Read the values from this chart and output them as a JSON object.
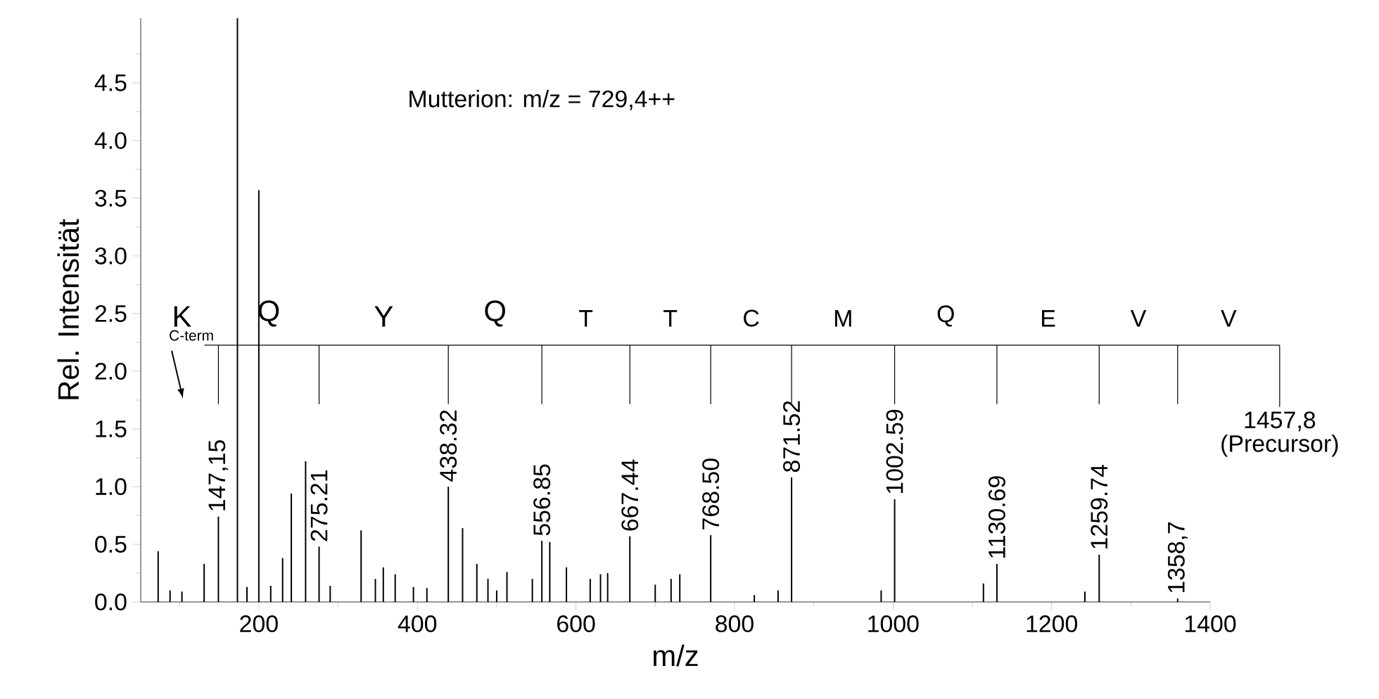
{
  "chart_data": {
    "type": "bar",
    "xlabel": "m/z",
    "ylabel": "Rel. Intensität",
    "x": [
      73,
      88,
      103,
      131,
      149,
      173,
      185,
      200,
      215,
      230,
      241,
      259,
      276,
      290,
      329,
      347,
      357,
      372,
      395,
      412,
      439,
      457,
      475,
      489,
      500,
      513,
      545,
      557,
      567,
      588,
      618,
      631,
      640,
      668,
      700,
      720,
      731,
      770,
      825,
      855,
      872,
      985,
      1002,
      1114,
      1131,
      1242,
      1260,
      1359
    ],
    "values": [
      0.44,
      0.1,
      0.09,
      0.33,
      0.74,
      5.06,
      0.13,
      3.57,
      0.14,
      0.38,
      0.94,
      1.22,
      0.48,
      0.14,
      0.62,
      0.2,
      0.3,
      0.24,
      0.13,
      0.12,
      1.0,
      0.64,
      0.33,
      0.2,
      0.1,
      0.26,
      0.2,
      0.53,
      0.52,
      0.3,
      0.2,
      0.24,
      0.25,
      0.57,
      0.15,
      0.2,
      0.24,
      0.58,
      0.06,
      0.1,
      1.08,
      0.1,
      0.89,
      0.16,
      0.33,
      0.09,
      0.41,
      0.03
    ],
    "color": "#000000",
    "xlim": [
      51,
      1400
    ],
    "xticks": [
      {
        "value": 100,
        "label": null
      },
      200,
      {
        "value": 300,
        "label": null
      },
      400,
      {
        "value": 500,
        "label": null
      },
      600,
      {
        "value": 700,
        "label": null
      },
      800,
      {
        "value": 900,
        "label": null
      },
      1000,
      {
        "value": 1100,
        "label": null
      },
      1200,
      {
        "value": 1300,
        "label": null
      },
      1400
    ],
    "ylim": [
      0,
      5.06
    ],
    "yticks": [
      {
        "value": 0,
        "label": "0.0"
      },
      {
        "value": 0.25,
        "label": null
      },
      {
        "value": 0.5,
        "label": "0.5"
      },
      {
        "value": 0.75,
        "label": null
      },
      {
        "value": 1,
        "label": "1.0"
      },
      {
        "value": 1.25,
        "label": null
      },
      {
        "value": 1.5,
        "label": "1.5"
      },
      {
        "value": 1.75,
        "label": null
      },
      {
        "value": 2,
        "label": "2.0"
      },
      {
        "value": 2.25,
        "label": null
      },
      {
        "value": 2.5,
        "label": "2.5"
      },
      {
        "value": 2.75,
        "label": null
      },
      {
        "value": 3,
        "label": "3.0"
      },
      {
        "value": 3.25,
        "label": null
      },
      {
        "value": 3.5,
        "label": "3.5"
      },
      {
        "value": 3.75,
        "label": null
      },
      {
        "value": 4,
        "label": "4.0"
      },
      {
        "value": 4.25,
        "label": null
      },
      {
        "value": 4.5,
        "label": "4.5"
      },
      {
        "value": 4.75,
        "label": null
      }
    ],
    "annotations": [
      "Mutterion: m/z = 729,4++",
      "C-term",
      "K",
      "Q",
      "Y",
      "Q",
      "T",
      "T",
      "C",
      "M",
      "Q",
      "E",
      "V",
      "V",
      {
        "text": "147,15",
        "x": 149,
        "y": 0.74
      },
      {
        "text": "275.21",
        "x": 276,
        "y": 0.48
      },
      {
        "text": "438.32",
        "x": 439,
        "y": 1.0
      },
      {
        "text": "556.85",
        "x": 557,
        "y": 0.53
      },
      {
        "text": "667.44",
        "x": 668,
        "y": 0.57
      },
      {
        "text": "768.50",
        "x": 770,
        "y": 0.58
      },
      {
        "text": "871.52",
        "x": 872,
        "y": 1.08
      },
      {
        "text": "1002.59",
        "x": 1002,
        "y": 0.89
      },
      {
        "text": "1130.69",
        "x": 1131,
        "y": 0.33
      },
      {
        "text": "1259.74",
        "x": 1260,
        "y": 0.41
      },
      {
        "text": "1358,7",
        "x": 1359,
        "y": 0.03
      },
      "1457,8",
      "(Precursor)"
    ]
  }
}
